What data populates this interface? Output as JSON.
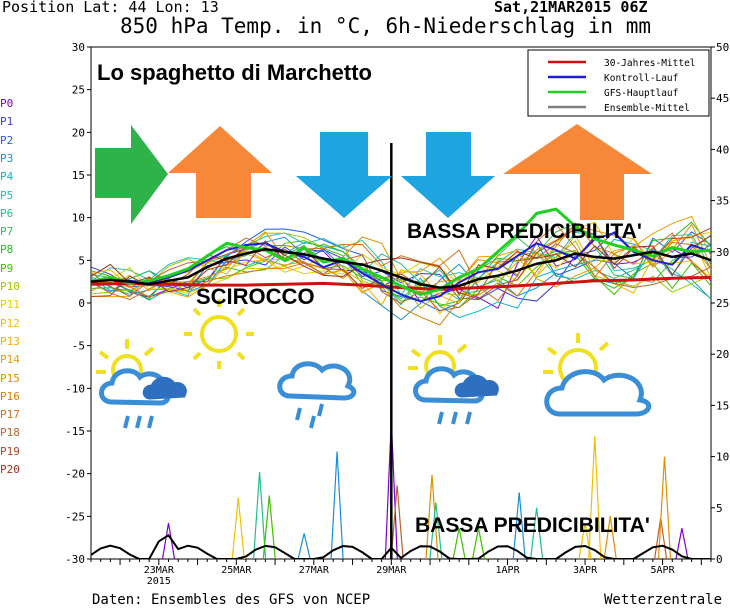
{
  "header": {
    "position": "Position  Lat: 44 Lon: 13",
    "run_date": "Sat,21MAR2015 06Z",
    "title": "850 hPa Temp. in °C, 6h-Niederschlag in mm"
  },
  "footer": {
    "source": "Daten: Ensembles des GFS von NCEP",
    "brand": "Wetterzentrale"
  },
  "overlay": {
    "label": "Lo spaghetto di Marchetto",
    "scirocco": "SCIROCCO",
    "low_predictability_top": "BASSA PREDICIBILITA'",
    "low_predictability_bottom": "BASSA PREDICIBILITA'",
    "arrows": [
      {
        "icon": "right-arrow-icon",
        "color": "#2db34a"
      },
      {
        "icon": "up-arrow-icon",
        "color": "#f7883a"
      },
      {
        "icon": "down-arrow-icon",
        "color": "#1ea4e0"
      },
      {
        "icon": "down-arrow-icon",
        "color": "#1ea4e0"
      },
      {
        "icon": "up-arrow-icon",
        "color": "#f7883a"
      }
    ],
    "weather_icons": [
      "sun-cloud-rain-icon",
      "sun-icon",
      "cloud-rain-icon",
      "sun-cloud-rain-icon",
      "sun-cloud-icon"
    ]
  },
  "members": {
    "labels": [
      "P0",
      "P1",
      "P2",
      "P3",
      "P4",
      "P5",
      "P6",
      "P7",
      "P8",
      "P9",
      "P10",
      "P11",
      "P12",
      "P13",
      "P14",
      "P15",
      "P16",
      "P17",
      "P18",
      "P19",
      "P20"
    ],
    "colors": [
      "#8000d0",
      "#3c3cd8",
      "#2060e0",
      "#1890d8",
      "#10b0c8",
      "#20c0b0",
      "#20c090",
      "#30c050",
      "#20c020",
      "#40c000",
      "#a0c800",
      "#e0d000",
      "#f0c000",
      "#f0b000",
      "#e8a000",
      "#e09000",
      "#d88000",
      "#d07020",
      "#c06030",
      "#b04828",
      "#a03020"
    ]
  },
  "chart_data": {
    "type": "line",
    "x_tick_labels": [
      "23MAR\n2015",
      "25MAR",
      "27MAR",
      "29MAR",
      "1APR",
      "3APR",
      "5APR"
    ],
    "x_days": [
      1.75,
      3.75,
      5.75,
      7.75,
      10.75,
      12.75,
      14.75
    ],
    "xlim_days": [
      0,
      16
    ],
    "ylabel_left": "850 hPa Temp. in °C",
    "ylim_left": [
      -30,
      30
    ],
    "yticks_left": [
      30,
      25,
      20,
      15,
      10,
      5,
      0,
      -5,
      -10,
      -15,
      -20,
      -25,
      -30
    ],
    "ylim_right": [
      0,
      50
    ],
    "yticks_right": [
      50,
      45,
      40,
      35,
      30,
      25,
      20,
      15,
      10,
      5,
      0
    ],
    "vertical_marker_day": 7.75,
    "legend": {
      "placement": "top-right",
      "entries": [
        {
          "name": "30-Jahres-Mittel",
          "color": "#d01010"
        },
        {
          "name": "Kontroll-Lauf",
          "color": "#2020d0"
        },
        {
          "name": "GFS-Hauptlauf",
          "color": "#20d020"
        },
        {
          "name": "Ensemble-Mittel",
          "color": "#808080"
        }
      ]
    },
    "series": [
      {
        "name": "30-Jahres-Mittel",
        "color": "#d01010",
        "x": [
          0,
          1,
          2,
          3,
          4,
          5,
          6,
          7,
          8,
          9,
          10,
          11,
          12,
          13,
          14,
          15,
          16
        ],
        "y": [
          2.2,
          2.3,
          2.2,
          2.1,
          2.1,
          2.2,
          2.3,
          2.1,
          1.8,
          1.6,
          1.8,
          2.0,
          2.3,
          2.6,
          2.7,
          2.9,
          3.0
        ]
      },
      {
        "name": "Ensemble-Mittel",
        "color": "#000000",
        "x": [
          0,
          0.5,
          1,
          1.5,
          2,
          2.5,
          3,
          3.5,
          4,
          4.5,
          5,
          5.5,
          6,
          6.5,
          7,
          7.5,
          8,
          8.5,
          9,
          9.5,
          10,
          10.5,
          11,
          11.5,
          12,
          12.5,
          13,
          13.5,
          14,
          14.5,
          15,
          15.5,
          16
        ],
        "y": [
          2.5,
          2.7,
          2.5,
          2.2,
          2.6,
          3.0,
          4.2,
          5.2,
          5.8,
          6.3,
          6.0,
          5.7,
          5.2,
          4.8,
          4.5,
          3.8,
          3.0,
          2.2,
          1.8,
          2.0,
          2.8,
          3.2,
          3.8,
          4.6,
          5.0,
          5.8,
          5.4,
          5.2,
          5.6,
          6.0,
          5.4,
          5.8,
          5.0
        ]
      },
      {
        "name": "GFS-Hauptlauf",
        "color": "#20d020",
        "x": [
          0,
          0.5,
          1,
          1.5,
          2,
          2.5,
          3,
          3.5,
          4,
          4.5,
          5,
          5.5,
          6,
          6.5,
          7,
          7.5,
          8,
          8.5,
          9,
          9.5,
          10,
          10.5,
          11,
          11.5,
          12,
          12.5,
          13,
          13.5,
          14,
          14.5,
          15,
          15.5,
          16
        ],
        "y": [
          2.5,
          3.0,
          2.3,
          2.6,
          3.2,
          4.0,
          5.5,
          7.0,
          6.5,
          6.2,
          5.0,
          6.5,
          4.8,
          5.2,
          4.0,
          3.0,
          2.0,
          1.0,
          1.6,
          3.0,
          4.0,
          6.0,
          8.0,
          10.5,
          11.0,
          9.0,
          7.5,
          6.8,
          6.2,
          5.5,
          6.5,
          6.0,
          6.2
        ]
      },
      {
        "name": "Kontroll-Lauf",
        "color": "#2020d0",
        "x": [
          0,
          0.5,
          1,
          1.5,
          2,
          2.5,
          3,
          3.5,
          4,
          4.5,
          5,
          5.5,
          6,
          6.5,
          7,
          7.5,
          8,
          8.5,
          9,
          9.5,
          10,
          10.5,
          11,
          11.5,
          12,
          12.5,
          13,
          13.5,
          14,
          14.5,
          15,
          15.5,
          16
        ],
        "y": [
          2.5,
          2.8,
          2.6,
          2.4,
          3.0,
          3.8,
          5.0,
          6.2,
          6.8,
          7.0,
          6.0,
          5.4,
          4.2,
          5.0,
          3.5,
          2.2,
          1.0,
          0.2,
          0.8,
          2.4,
          3.6,
          4.0,
          5.5,
          7.0,
          6.2,
          5.2,
          7.5,
          8.2,
          6.0,
          5.0,
          4.5,
          6.8,
          6.0
        ]
      }
    ],
    "precipitation": {
      "axis": "right",
      "unit": "mm",
      "spikes": [
        {
          "day": 7.75,
          "value": 13.5
        },
        {
          "day": 6.35,
          "value": 10.5
        },
        {
          "day": 4.35,
          "value": 8.5
        },
        {
          "day": 4.6,
          "value": 6.2
        },
        {
          "day": 3.8,
          "value": 6.0
        },
        {
          "day": 8.8,
          "value": 8.2
        },
        {
          "day": 7.9,
          "value": 7.2
        },
        {
          "day": 2.0,
          "value": 3.5
        },
        {
          "day": 11.05,
          "value": 6.5
        },
        {
          "day": 11.5,
          "value": 5.0
        },
        {
          "day": 10.0,
          "value": 3.0
        },
        {
          "day": 12.75,
          "value": 3.5
        },
        {
          "day": 13.4,
          "value": 4.2
        },
        {
          "day": 14.7,
          "value": 4.0
        },
        {
          "day": 15.25,
          "value": 3.0
        },
        {
          "day": 5.5,
          "value": 2.5
        },
        {
          "day": 8.9,
          "value": 5.5
        },
        {
          "day": 9.5,
          "value": 3.0
        },
        {
          "day": 13.0,
          "value": 12.0
        },
        {
          "day": 14.8,
          "value": 10.0
        }
      ]
    }
  }
}
